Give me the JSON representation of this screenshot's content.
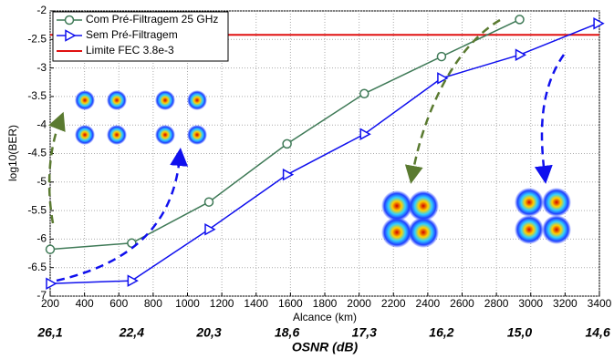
{
  "chart_data": {
    "type": "line",
    "y_label": "log10(BER)",
    "x_label": "Alcance (km)",
    "x2_label": "OSNR (dB)",
    "xlim": [
      200,
      3400
    ],
    "ylim": [
      -7,
      -2
    ],
    "xticks": [
      200,
      400,
      600,
      800,
      1000,
      1200,
      1400,
      1600,
      1800,
      2000,
      2200,
      2400,
      2600,
      2800,
      3000,
      3200,
      3400
    ],
    "yticks": [
      -2,
      -2.5,
      -3,
      -3.5,
      -4,
      -4.5,
      -5,
      -5.5,
      -6,
      -6.5,
      -7
    ],
    "x2ticks": [
      {
        "value": 200,
        "label": "26,1"
      },
      {
        "value": 675,
        "label": "22,4"
      },
      {
        "value": 1125,
        "label": "20,3"
      },
      {
        "value": 1580,
        "label": "18,6"
      },
      {
        "value": 2030,
        "label": "17,3"
      },
      {
        "value": 2480,
        "label": "16,2"
      },
      {
        "value": 2935,
        "label": "15,0"
      },
      {
        "value": 3390,
        "label": "14,6"
      }
    ],
    "grid": true,
    "legend": "upper-left",
    "series": [
      {
        "name": "Com Pré-Filtragem 25 GHz",
        "color": "#3f7a57",
        "marker": "circle",
        "x": [
          200,
          675,
          1125,
          1580,
          2030,
          2480,
          2935
        ],
        "values": [
          -6.18,
          -6.07,
          -5.35,
          -4.33,
          -3.45,
          -2.8,
          -2.15
        ]
      },
      {
        "name": "Sem Pré-Filtragem",
        "color": "#1010ee",
        "marker": "triangle-right",
        "x": [
          200,
          675,
          1125,
          1580,
          2030,
          2480,
          2935,
          3390
        ],
        "values": [
          -6.78,
          -6.73,
          -5.83,
          -4.87,
          -4.16,
          -3.18,
          -2.77,
          -2.22
        ]
      }
    ],
    "reference_lines": [
      {
        "name": "Limite FEC 3.8e-3",
        "value": -2.42,
        "color": "#e01010"
      }
    ]
  }
}
